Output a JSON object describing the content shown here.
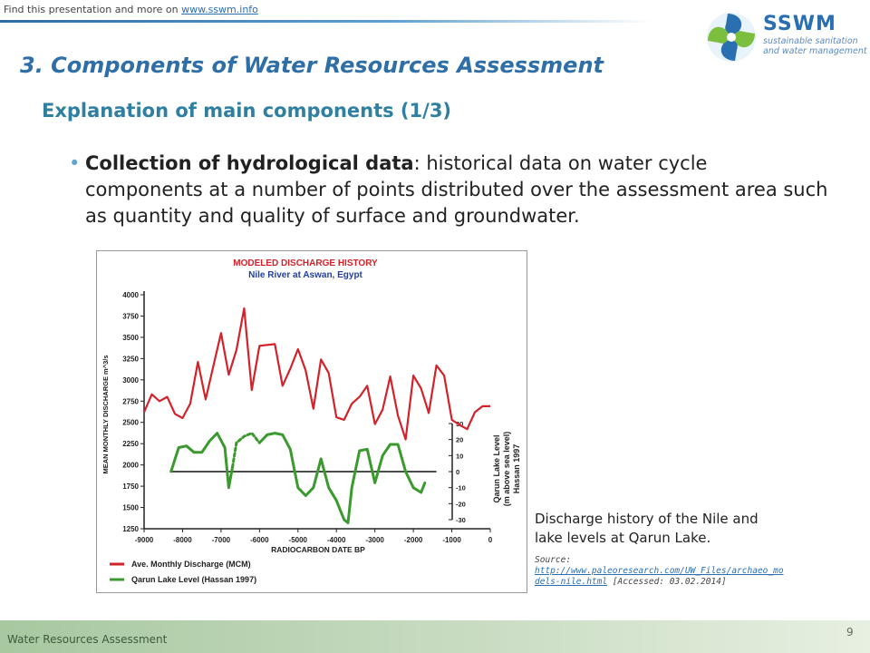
{
  "header": {
    "note_prefix": "Find this presentation  and more on",
    "note_link": "www.sswm.info",
    "logo_title": "SSWM",
    "logo_sub_1": "sustainable sanitation",
    "logo_sub_2": "and water management"
  },
  "slide": {
    "section_title": "3. Components of Water Resources Assessment",
    "subtitle": "Explanation of main components (1/3)",
    "bullet_bold": "Collection of hydrological data",
    "bullet_rest": ": historical data on water cycle components at a number of points distributed over the assessment area such as quantity and quality of surface and groundwater.",
    "caption": "Discharge history of the Nile and lake levels at Qarun Lake.",
    "source_label": "Source:",
    "source_link": "http://www.paleoresearch.com/UW_Files/archaeo_models-nile.html",
    "source_accessed": "[Accessed: 03.02.2014]"
  },
  "footer": {
    "text": "Water Resources Assessment",
    "page": "9"
  },
  "colors": {
    "title_blue": "#2f6fa8",
    "discharge_red": "#d2232a",
    "lake_green": "#3a9a2e"
  },
  "chart_data": {
    "type": "line",
    "title": "MODELED DISCHARGE HISTORY",
    "subtitle": "Nile River at Aswan, Egypt",
    "xlabel": "RADIOCARBON DATE BP",
    "ylabel": "MEAN MONTHLY DISCHARGE m^3/s",
    "y2label_1": "Qarun Lake Level",
    "y2label_2": "(m above sea level)",
    "y2label_3": "Hassan 1997",
    "xlim": [
      -9000,
      0
    ],
    "ylim": [
      1250,
      4000
    ],
    "y2lim": [
      -30,
      30
    ],
    "x_ticks": [
      "-9000",
      "-8000",
      "-7000",
      "-6000",
      "-5000",
      "-4000",
      "-3000",
      "-2000",
      "-1000",
      "0"
    ],
    "x_tick_values": [
      -9000,
      -8000,
      -7000,
      -6000,
      -5000,
      -4000,
      -3000,
      -2000,
      -1000,
      0
    ],
    "y_ticks": [
      "4000",
      "3750",
      "3500",
      "3250",
      "3000",
      "2750",
      "2500",
      "2250",
      "2000",
      "1750",
      "1500",
      "1250"
    ],
    "y_tick_values": [
      4000,
      3750,
      3500,
      3250,
      3000,
      2750,
      2500,
      2250,
      2000,
      1750,
      1500,
      1250
    ],
    "y2_ticks": [
      "30",
      "20",
      "10",
      "0",
      "-10",
      "-20",
      "-30"
    ],
    "y2_tick_values": [
      30,
      20,
      10,
      0,
      -10,
      -20,
      -30
    ],
    "series": [
      {
        "name": "Ave. Monthly Discharge (MCM)",
        "color": "#d2232a",
        "x": [
          -9000,
          -8800,
          -8600,
          -8400,
          -8200,
          -8000,
          -7800,
          -7600,
          -7400,
          -7200,
          -7000,
          -6800,
          -6600,
          -6400,
          -6200,
          -6000,
          -5600,
          -5400,
          -5200,
          -5000,
          -4800,
          -4600,
          -4400,
          -4200,
          -4000,
          -3800,
          -3600,
          -3400,
          -3200,
          -3000,
          -2800,
          -2600,
          -2400,
          -2200,
          -2000,
          -1800,
          -1600,
          -1400,
          -1200,
          -1000,
          -800,
          -600,
          -400,
          -200,
          0
        ],
        "y": [
          2620,
          2830,
          2750,
          2800,
          2600,
          2550,
          2720,
          3210,
          2770,
          3160,
          3550,
          3060,
          3350,
          3840,
          2880,
          3400,
          3420,
          2930,
          3130,
          3360,
          3110,
          2660,
          3240,
          3080,
          2560,
          2530,
          2720,
          2800,
          2930,
          2480,
          2650,
          3040,
          2580,
          2300,
          3050,
          2900,
          2610,
          3170,
          3050,
          2530,
          2470,
          2420,
          2620,
          2690,
          2690
        ]
      },
      {
        "name": "Qarun Lake Level (Hassan 1997)",
        "color": "#3a9a2e",
        "x": [
          -8300,
          -8100,
          -7900,
          -7700,
          -7500,
          -7300,
          -7100,
          -6900,
          -6800,
          -6700,
          -6600,
          -6400,
          -6200,
          -6000,
          -5800,
          -5600,
          -5400,
          -5200,
          -5000,
          -4800,
          -4600,
          -4400,
          -4200,
          -4000,
          -3800,
          -3700,
          -3600,
          -3400,
          -3200,
          -3000,
          -2800,
          -2600,
          -2400,
          -2200,
          -2000,
          -1800,
          -1700
        ],
        "y": [
          0,
          15,
          16,
          12,
          12,
          19,
          24,
          15,
          -10,
          3,
          18,
          22,
          24,
          18,
          23,
          24,
          23,
          14,
          -10,
          -15,
          -10,
          8,
          -10,
          -18,
          -30,
          -32,
          -10,
          13,
          14,
          -7,
          10,
          17,
          17,
          0,
          -10,
          -13,
          -7
        ],
        "dashed_x_range": [
          -6800,
          -6200
        ]
      }
    ],
    "zero_line_label": "0",
    "legend_position": "bottom-left",
    "grid": false
  }
}
